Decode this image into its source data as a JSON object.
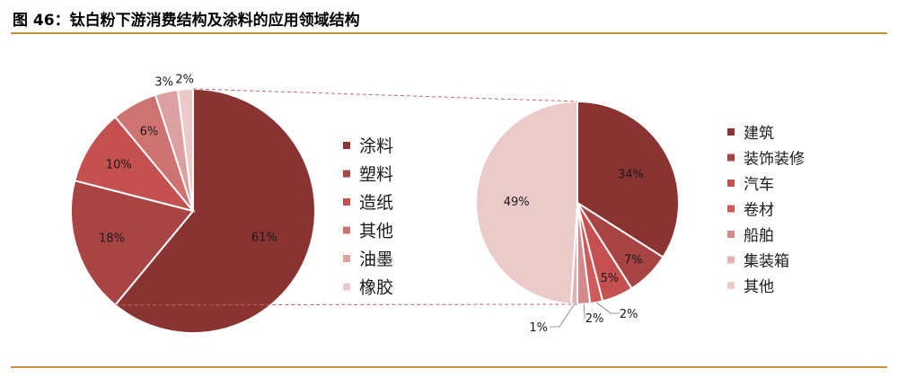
{
  "header": {
    "title": "图 46：钛白粉下游消费结构及涂料的应用领域结构"
  },
  "chart_data": [
    {
      "type": "pie",
      "title": "",
      "categories": [
        "涂料",
        "塑料",
        "造纸",
        "其他",
        "油墨",
        "橡胶"
      ],
      "values": [
        61,
        18,
        10,
        6,
        3,
        2
      ],
      "value_labels": [
        "61%",
        "18%",
        "10%",
        "6%",
        "3%",
        "2%"
      ],
      "colors": [
        "#8a3333",
        "#a84444",
        "#c45050",
        "#cf7272",
        "#dba0a0",
        "#ecc9c9"
      ],
      "legend_position": "right",
      "exploded_category": "涂料"
    },
    {
      "type": "pie",
      "title": "",
      "categories": [
        "建筑",
        "装饰装修",
        "汽车",
        "卷材",
        "船舶",
        "集装箱",
        "其他"
      ],
      "values": [
        34,
        7,
        5,
        2,
        2,
        1,
        49
      ],
      "value_labels": [
        "34%",
        "7%",
        "5%",
        "2%",
        "2%",
        "1%",
        "49%"
      ],
      "colors": [
        "#8a3333",
        "#a84444",
        "#c45050",
        "#cf5a5a",
        "#d48a8a",
        "#e2b2b2",
        "#ebcaca"
      ],
      "legend_position": "right"
    }
  ]
}
